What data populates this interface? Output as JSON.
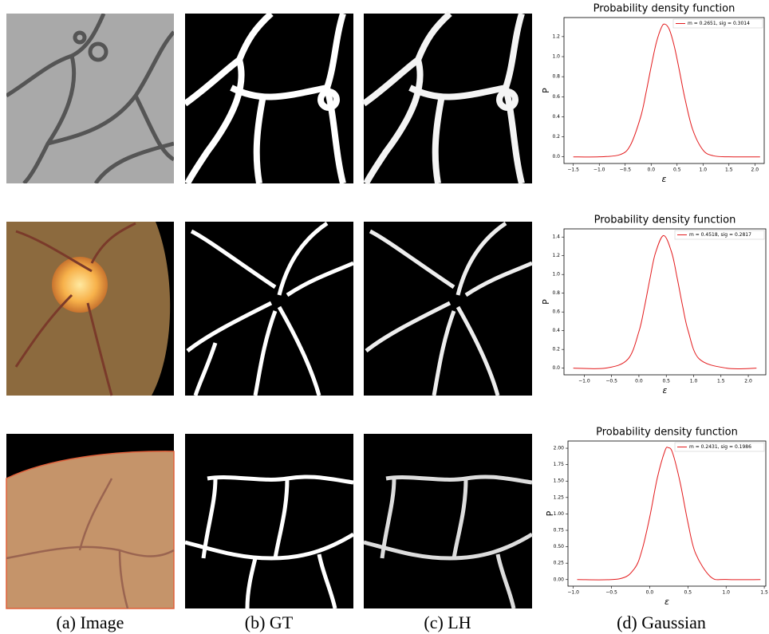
{
  "captions": [
    "(a) Image",
    "(b) GT",
    "(c) LH",
    "(d) Gaussian"
  ],
  "chart_data": [
    {
      "type": "line",
      "title": "Probability density function",
      "xlabel": "ε",
      "ylabel": "P",
      "legend": "upper right",
      "x": [
        -1.5,
        -1.0,
        -0.6,
        -0.4,
        -0.2,
        -0.1,
        0.0,
        0.1,
        0.2,
        0.2651,
        0.35,
        0.45,
        0.55,
        0.65,
        0.8,
        1.0,
        1.2,
        1.5,
        2.1
      ],
      "series": [
        {
          "name": "m = 0.2651, sig = 0.3014",
          "color": "#e31a1c",
          "values": [
            0.0,
            0.0002,
            0.022,
            0.116,
            0.402,
            0.636,
            0.899,
            1.139,
            1.293,
            1.324,
            1.272,
            1.096,
            0.847,
            0.586,
            0.274,
            0.068,
            0.011,
            0.0003,
            0.0
          ]
        }
      ],
      "xlim": [
        -1.68,
        2.18
      ],
      "ylim": [
        -0.066,
        1.39
      ],
      "xticks": [
        {
          "value": -1.5,
          "label": "−1.5"
        },
        {
          "value": -1.0,
          "label": "−1.0"
        },
        {
          "value": -0.5,
          "label": "−0.5"
        },
        {
          "value": 0.0,
          "label": "0.0"
        },
        {
          "value": 0.5,
          "label": "0.5"
        },
        {
          "value": 1.0,
          "label": "1.0"
        },
        {
          "value": 1.5,
          "label": "1.5"
        },
        {
          "value": 2.0,
          "label": "2.0"
        }
      ],
      "yticks": [
        {
          "value": 0.0,
          "label": "0.0"
        },
        {
          "value": 0.2,
          "label": "0.2"
        },
        {
          "value": 0.4,
          "label": "0.4"
        },
        {
          "value": 0.6,
          "label": "0.6"
        },
        {
          "value": 0.8,
          "label": "0.8"
        },
        {
          "value": 1.0,
          "label": "1.0"
        },
        {
          "value": 1.2,
          "label": "1.2"
        }
      ]
    },
    {
      "type": "line",
      "title": "Probability density function",
      "xlabel": "ε",
      "ylabel": "P",
      "legend": "upper right",
      "x": [
        -1.2,
        -0.6,
        -0.2,
        0.0,
        0.1,
        0.2,
        0.3,
        0.4518,
        0.6,
        0.7,
        0.8,
        0.9,
        1.1,
        1.6,
        2.15
      ],
      "series": [
        {
          "name": "m = 0.4518, sig = 0.2817",
          "color": "#e31a1c",
          "values": [
            0.0,
            0.0013,
            0.097,
            0.391,
            0.649,
            0.95,
            1.225,
            1.416,
            1.233,
            0.961,
            0.66,
            0.399,
            0.1,
            0.0003,
            0.0
          ]
        }
      ],
      "xlim": [
        -1.37,
        2.32
      ],
      "ylim": [
        -0.071,
        1.487
      ],
      "xticks": [
        {
          "value": -1.0,
          "label": "−1.0"
        },
        {
          "value": -0.5,
          "label": "−0.5"
        },
        {
          "value": 0.0,
          "label": "0.0"
        },
        {
          "value": 0.5,
          "label": "0.5"
        },
        {
          "value": 1.0,
          "label": "1.0"
        },
        {
          "value": 1.5,
          "label": "1.5"
        },
        {
          "value": 2.0,
          "label": "2.0"
        }
      ],
      "yticks": [
        {
          "value": 0.0,
          "label": "0.0"
        },
        {
          "value": 0.2,
          "label": "0.2"
        },
        {
          "value": 0.4,
          "label": "0.4"
        },
        {
          "value": 0.6,
          "label": "0.6"
        },
        {
          "value": 0.8,
          "label": "0.8"
        },
        {
          "value": 1.0,
          "label": "1.0"
        },
        {
          "value": 1.2,
          "label": "1.2"
        },
        {
          "value": 1.4,
          "label": "1.4"
        }
      ]
    },
    {
      "type": "line",
      "title": "Probability density function",
      "xlabel": "ε",
      "ylabel": "P",
      "legend": "upper right",
      "x": [
        -0.95,
        -0.4,
        -0.2,
        -0.1,
        0.0,
        0.1,
        0.2,
        0.2431,
        0.3,
        0.4,
        0.5,
        0.6,
        0.8,
        1.0,
        1.45
      ],
      "series": [
        {
          "name": "m = 0.2431, sig = 0.1986",
          "color": "#e31a1c",
          "values": [
            0.0,
            0.011,
            0.167,
            0.452,
            0.95,
            1.55,
            1.962,
            2.009,
            1.928,
            1.47,
            0.87,
            0.4,
            0.039,
            0.0014,
            0.0
          ]
        }
      ],
      "xlim": [
        -1.07,
        1.52
      ],
      "ylim": [
        -0.1,
        2.11
      ],
      "xticks": [
        {
          "value": -1.0,
          "label": "−1.0"
        },
        {
          "value": -0.5,
          "label": "−0.5"
        },
        {
          "value": 0.0,
          "label": "0.0"
        },
        {
          "value": 0.5,
          "label": "0.5"
        },
        {
          "value": 1.0,
          "label": "1.0"
        },
        {
          "value": 1.5,
          "label": "1.5"
        }
      ],
      "yticks": [
        {
          "value": 0.0,
          "label": "0.00"
        },
        {
          "value": 0.25,
          "label": "0.25"
        },
        {
          "value": 0.5,
          "label": "0.50"
        },
        {
          "value": 0.75,
          "label": "0.75"
        },
        {
          "value": 1.0,
          "label": "1.00"
        },
        {
          "value": 1.25,
          "label": "1.25"
        },
        {
          "value": 1.5,
          "label": "1.50"
        },
        {
          "value": 1.75,
          "label": "1.75"
        },
        {
          "value": 2.0,
          "label": "2.00"
        }
      ]
    }
  ]
}
